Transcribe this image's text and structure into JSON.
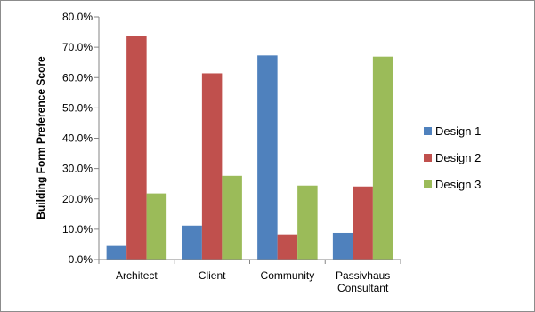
{
  "chart_data": {
    "type": "bar",
    "title": "",
    "xlabel": "",
    "ylabel": "Building Form Preference Score",
    "categories": [
      [
        "Architect"
      ],
      [
        "Client"
      ],
      [
        "Community"
      ],
      [
        "Passivhaus",
        "Consultant"
      ]
    ],
    "series": [
      {
        "name": "Design 1",
        "color": "#4f81bd",
        "values": [
          4.5,
          11.2,
          67.3,
          8.8
        ]
      },
      {
        "name": "Design 2",
        "color": "#c0504d",
        "values": [
          73.6,
          61.4,
          8.3,
          24.1
        ]
      },
      {
        "name": "Design 3",
        "color": "#9bbb59",
        "values": [
          21.8,
          27.6,
          24.4,
          66.9
        ]
      }
    ],
    "ylim": [
      0,
      80
    ],
    "yticks": [
      "0.0%",
      "10.0%",
      "20.0%",
      "30.0%",
      "40.0%",
      "50.0%",
      "60.0%",
      "70.0%",
      "80.0%"
    ],
    "grid": false,
    "legend_position": "right"
  }
}
